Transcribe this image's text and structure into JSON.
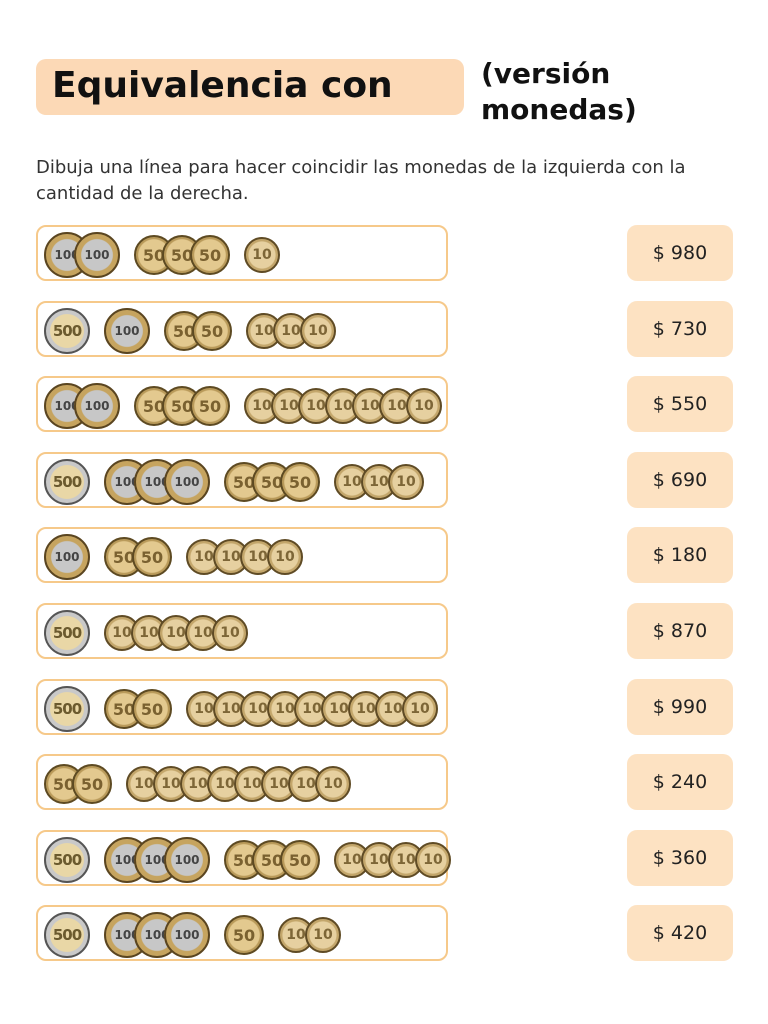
{
  "title": {
    "main": "Equivalencia con",
    "side": "(versión monedas)",
    "box_color": "#fcd9b6"
  },
  "instructions": "Dibuja una línea para hacer coincidir las monedas de la izquierda con la cantidad de la derecha.",
  "coin_labels": {
    "c500": "500",
    "c100": "100",
    "c50": "50",
    "c10": "10"
  },
  "rows": [
    {
      "coins": [
        0,
        2,
        3,
        1
      ]
    },
    {
      "coins": [
        1,
        1,
        2,
        3
      ]
    },
    {
      "coins": [
        0,
        2,
        3,
        7
      ]
    },
    {
      "coins": [
        1,
        3,
        3,
        3
      ]
    },
    {
      "coins": [
        0,
        1,
        2,
        4
      ]
    },
    {
      "coins": [
        1,
        0,
        0,
        5
      ]
    },
    {
      "coins": [
        1,
        0,
        2,
        9
      ]
    },
    {
      "coins": [
        0,
        0,
        2,
        8
      ]
    },
    {
      "coins": [
        1,
        3,
        3,
        4
      ]
    },
    {
      "coins": [
        1,
        3,
        1,
        2
      ]
    }
  ],
  "amounts": [
    "$ 980",
    "$ 730",
    "$ 550",
    "$ 690",
    "$ 180",
    "$ 870",
    "$ 990",
    "$ 240",
    "$ 360",
    "$ 420"
  ],
  "colors": {
    "row_border": "#f6c98a",
    "amount_bg": "#fde2c2"
  }
}
